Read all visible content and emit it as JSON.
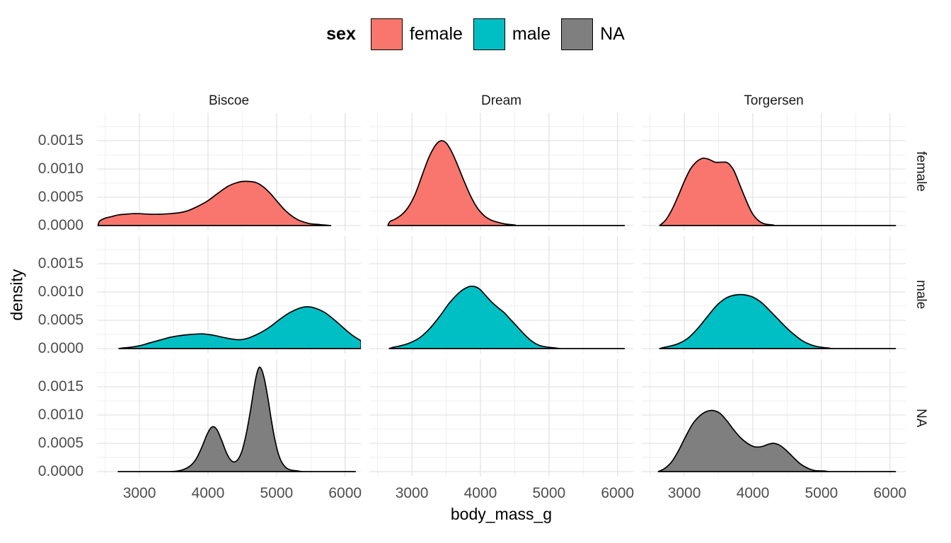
{
  "legend": {
    "title": "sex",
    "items": [
      {
        "label": "female",
        "color": "#F8766D"
      },
      {
        "label": "male",
        "color": "#00BFC4"
      },
      {
        "label": "NA",
        "color": "#7F7F7F"
      }
    ]
  },
  "axes": {
    "x_title": "body_mass_g",
    "y_title": "density"
  },
  "chart_data": {
    "type": "area",
    "subtype": "faceted-density",
    "title": "",
    "xlabel": "body_mass_g",
    "ylabel": "density",
    "legend_position": "top",
    "grid": "on",
    "facet_columns": [
      "Biscoe",
      "Dream",
      "Torgersen"
    ],
    "facet_rows": [
      "female",
      "male",
      "NA"
    ],
    "x_domain": [
      2380,
      6230
    ],
    "y_plot_max": 0.001988,
    "x_major_ticks": [
      3000,
      4000,
      5000,
      6000
    ],
    "x_minor_ticks": [
      2500,
      3500,
      4500,
      5500
    ],
    "y_major_ticks": [
      0,
      0.0005,
      0.001,
      0.0015
    ],
    "y_minor_ticks": [
      0.00025,
      0.00075,
      0.00125,
      0.00175
    ],
    "x_tick_labels": [
      "3000",
      "4000",
      "5000",
      "6000"
    ],
    "y_tick_labels": [
      "0.0000",
      "0.0005",
      "0.0010",
      "0.0015"
    ],
    "grid_major_color": "#E3E3E3",
    "grid_minor_color": "#EFEFEF",
    "curve_stroke_color": "#000000",
    "panels": [
      {
        "row": "female",
        "col": "Biscoe",
        "color": "#F8766D",
        "points": [
          [
            2395,
            0
          ],
          [
            2420,
            8e-05
          ],
          [
            2500,
            0.00013
          ],
          [
            2600,
            0.00016
          ],
          [
            2700,
            0.00019
          ],
          [
            2800,
            0.0002
          ],
          [
            2900,
            0.00021
          ],
          [
            3000,
            0.00021
          ],
          [
            3150,
            0.0002
          ],
          [
            3300,
            0.0002
          ],
          [
            3450,
            0.00021
          ],
          [
            3600,
            0.00023
          ],
          [
            3700,
            0.00026
          ],
          [
            3800,
            0.00031
          ],
          [
            3900,
            0.00037
          ],
          [
            4000,
            0.00044
          ],
          [
            4100,
            0.00053
          ],
          [
            4200,
            0.00062
          ],
          [
            4300,
            0.0007
          ],
          [
            4400,
            0.00075
          ],
          [
            4500,
            0.00078
          ],
          [
            4600,
            0.00078
          ],
          [
            4700,
            0.00076
          ],
          [
            4800,
            0.00069
          ],
          [
            4900,
            0.00058
          ],
          [
            5000,
            0.00044
          ],
          [
            5100,
            0.0003
          ],
          [
            5200,
            0.00019
          ],
          [
            5300,
            0.00011
          ],
          [
            5400,
            6e-05
          ],
          [
            5500,
            3e-05
          ],
          [
            5600,
            2e-05
          ],
          [
            5700,
            1e-05
          ],
          [
            5790,
            0
          ]
        ]
      },
      {
        "row": "female",
        "col": "Dream",
        "color": "#F8766D",
        "points": [
          [
            2650,
            0
          ],
          [
            2680,
            7e-05
          ],
          [
            2750,
            0.00011
          ],
          [
            2850,
            0.00019
          ],
          [
            2950,
            0.00033
          ],
          [
            3050,
            0.00056
          ],
          [
            3150,
            0.00089
          ],
          [
            3250,
            0.00121
          ],
          [
            3350,
            0.00143
          ],
          [
            3430,
            0.0015
          ],
          [
            3500,
            0.00146
          ],
          [
            3570,
            0.00133
          ],
          [
            3650,
            0.00112
          ],
          [
            3750,
            0.00082
          ],
          [
            3850,
            0.00054
          ],
          [
            3950,
            0.00032
          ],
          [
            4050,
            0.00018
          ],
          [
            4150,
            0.0001
          ],
          [
            4250,
            6e-05
          ],
          [
            4350,
            3e-05
          ],
          [
            4500,
            1e-05
          ],
          [
            4650,
            0
          ],
          [
            6100,
            0
          ]
        ]
      },
      {
        "row": "female",
        "col": "Torgersen",
        "color": "#F8766D",
        "points": [
          [
            2640,
            0
          ],
          [
            2680,
            4e-05
          ],
          [
            2730,
            0.0001
          ],
          [
            2820,
            0.00028
          ],
          [
            2910,
            0.00052
          ],
          [
            3000,
            0.00078
          ],
          [
            3090,
            0.001
          ],
          [
            3180,
            0.00113
          ],
          [
            3270,
            0.00119
          ],
          [
            3360,
            0.00117
          ],
          [
            3450,
            0.00112
          ],
          [
            3540,
            0.00112
          ],
          [
            3630,
            0.00111
          ],
          [
            3720,
            0.00098
          ],
          [
            3810,
            0.00072
          ],
          [
            3900,
            0.00045
          ],
          [
            3990,
            0.00022
          ],
          [
            4080,
            9e-05
          ],
          [
            4170,
            3e-05
          ],
          [
            4300,
            1e-05
          ],
          [
            4420,
            0
          ],
          [
            6080,
            0
          ]
        ]
      },
      {
        "row": "male",
        "col": "Biscoe",
        "color": "#00BFC4",
        "points": [
          [
            2700,
            0
          ],
          [
            2750,
            1e-05
          ],
          [
            2850,
            2e-05
          ],
          [
            3000,
            5e-05
          ],
          [
            3150,
            0.0001
          ],
          [
            3300,
            0.00015
          ],
          [
            3450,
            0.0002
          ],
          [
            3600,
            0.00023
          ],
          [
            3750,
            0.00025
          ],
          [
            3900,
            0.00026
          ],
          [
            4000,
            0.00025
          ],
          [
            4100,
            0.00023
          ],
          [
            4250,
            0.00019
          ],
          [
            4400,
            0.00016
          ],
          [
            4500,
            0.00016
          ],
          [
            4600,
            0.00019
          ],
          [
            4750,
            0.00027
          ],
          [
            4900,
            0.00038
          ],
          [
            5050,
            0.00052
          ],
          [
            5200,
            0.00064
          ],
          [
            5350,
            0.00072
          ],
          [
            5450,
            0.00074
          ],
          [
            5550,
            0.00072
          ],
          [
            5700,
            0.00064
          ],
          [
            5850,
            0.0005
          ],
          [
            6000,
            0.00034
          ],
          [
            6100,
            0.00024
          ],
          [
            6200,
            0.00016
          ],
          [
            6230,
            0.00013
          ],
          [
            6230,
            0
          ]
        ]
      },
      {
        "row": "male",
        "col": "Dream",
        "color": "#00BFC4",
        "points": [
          [
            2670,
            0
          ],
          [
            2720,
            2e-05
          ],
          [
            2800,
            4e-05
          ],
          [
            2950,
            9e-05
          ],
          [
            3100,
            0.00018
          ],
          [
            3250,
            0.00034
          ],
          [
            3400,
            0.00056
          ],
          [
            3550,
            0.00081
          ],
          [
            3700,
            0.001
          ],
          [
            3820,
            0.00109
          ],
          [
            3900,
            0.0011
          ],
          [
            3980,
            0.00106
          ],
          [
            4060,
            0.00096
          ],
          [
            4150,
            0.00084
          ],
          [
            4250,
            0.00073
          ],
          [
            4350,
            0.00063
          ],
          [
            4450,
            0.0005
          ],
          [
            4550,
            0.00037
          ],
          [
            4650,
            0.00024
          ],
          [
            4750,
            0.00013
          ],
          [
            4850,
            6e-05
          ],
          [
            4950,
            3e-05
          ],
          [
            5100,
            1e-05
          ],
          [
            5250,
            0
          ],
          [
            6100,
            0
          ]
        ]
      },
      {
        "row": "male",
        "col": "Torgersen",
        "color": "#00BFC4",
        "points": [
          [
            2640,
            0
          ],
          [
            2700,
            2e-05
          ],
          [
            2780,
            4e-05
          ],
          [
            2920,
            9e-05
          ],
          [
            3060,
            0.00019
          ],
          [
            3200,
            0.00036
          ],
          [
            3340,
            0.00057
          ],
          [
            3480,
            0.00077
          ],
          [
            3620,
            0.0009
          ],
          [
            3760,
            0.00095
          ],
          [
            3880,
            0.00095
          ],
          [
            4000,
            0.00091
          ],
          [
            4120,
            0.00082
          ],
          [
            4240,
            0.00068
          ],
          [
            4360,
            0.00053
          ],
          [
            4480,
            0.00038
          ],
          [
            4600,
            0.00025
          ],
          [
            4720,
            0.00014
          ],
          [
            4840,
            7e-05
          ],
          [
            4960,
            3e-05
          ],
          [
            5100,
            1e-05
          ],
          [
            5250,
            0
          ],
          [
            6080,
            0
          ]
        ]
      },
      {
        "row": "NA",
        "col": "Biscoe",
        "color": "#7F7F7F",
        "points": [
          [
            2690,
            0
          ],
          [
            3400,
            0
          ],
          [
            3550,
            1e-05
          ],
          [
            3650,
            4e-05
          ],
          [
            3750,
            0.00011
          ],
          [
            3830,
            0.00023
          ],
          [
            3910,
            0.00043
          ],
          [
            3980,
            0.00064
          ],
          [
            4040,
            0.00077
          ],
          [
            4090,
            0.00079
          ],
          [
            4140,
            0.00072
          ],
          [
            4200,
            0.00055
          ],
          [
            4260,
            0.00036
          ],
          [
            4320,
            0.00022
          ],
          [
            4380,
            0.00017
          ],
          [
            4440,
            0.00022
          ],
          [
            4500,
            0.00038
          ],
          [
            4560,
            0.00068
          ],
          [
            4620,
            0.00108
          ],
          [
            4670,
            0.00147
          ],
          [
            4710,
            0.00172
          ],
          [
            4745,
            0.00184
          ],
          [
            4780,
            0.00181
          ],
          [
            4820,
            0.00165
          ],
          [
            4870,
            0.00133
          ],
          [
            4920,
            0.00094
          ],
          [
            4970,
            0.0006
          ],
          [
            5020,
            0.00034
          ],
          [
            5070,
            0.00018
          ],
          [
            5130,
            8e-05
          ],
          [
            5200,
            3e-05
          ],
          [
            5320,
            1e-05
          ],
          [
            5450,
            0
          ],
          [
            6150,
            0
          ]
        ]
      },
      {
        "row": "NA",
        "col": "Dream",
        "color": "#7F7F7F",
        "points": []
      },
      {
        "row": "NA",
        "col": "Torgersen",
        "color": "#7F7F7F",
        "points": [
          [
            2620,
            0
          ],
          [
            2660,
            2e-05
          ],
          [
            2720,
            6e-05
          ],
          [
            2820,
            0.00018
          ],
          [
            2920,
            0.00038
          ],
          [
            3020,
            0.00062
          ],
          [
            3120,
            0.00084
          ],
          [
            3220,
            0.00098
          ],
          [
            3320,
            0.00106
          ],
          [
            3420,
            0.00108
          ],
          [
            3520,
            0.00103
          ],
          [
            3620,
            0.0009
          ],
          [
            3720,
            0.00074
          ],
          [
            3820,
            0.0006
          ],
          [
            3920,
            0.0005
          ],
          [
            4020,
            0.00044
          ],
          [
            4120,
            0.00044
          ],
          [
            4220,
            0.00048
          ],
          [
            4300,
            0.0005
          ],
          [
            4400,
            0.00046
          ],
          [
            4500,
            0.00036
          ],
          [
            4600,
            0.00024
          ],
          [
            4700,
            0.00013
          ],
          [
            4800,
            6e-05
          ],
          [
            4900,
            2e-05
          ],
          [
            5050,
            1e-05
          ],
          [
            5200,
            0
          ],
          [
            6080,
            0
          ]
        ]
      }
    ]
  }
}
